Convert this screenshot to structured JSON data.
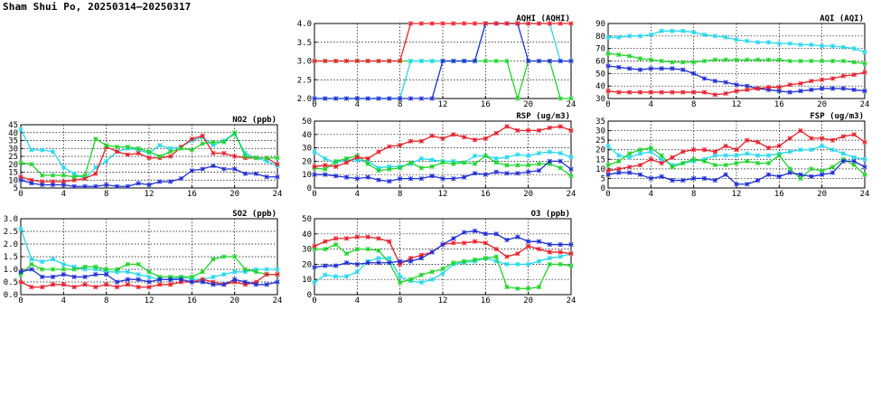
{
  "page_title": "Sham Shui Po, 20250314–20250317",
  "colors": {
    "red": "#e8202a",
    "blue": "#1f2fd4",
    "green": "#1ed42a",
    "cyan": "#23d8ee",
    "grid": "#000000"
  },
  "chart_data": [
    {
      "id": "no2",
      "type": "line",
      "title": "NO2 (ppb)",
      "xlim": [
        0,
        24
      ],
      "ylim": [
        5,
        45
      ],
      "xticks": [
        0,
        4,
        8,
        12,
        16,
        20,
        24
      ],
      "yticks": [
        5,
        10,
        15,
        20,
        25,
        30,
        35,
        40,
        45
      ],
      "ytick_labels": [
        "5",
        "10",
        "15",
        "20",
        "25",
        "30",
        "35",
        "40",
        "45"
      ],
      "series": [
        {
          "color": "cyan",
          "values": [
            42,
            29,
            29,
            28,
            18,
            14,
            11,
            18,
            22,
            28,
            30,
            29,
            27,
            32,
            30,
            31,
            35,
            37,
            32,
            35,
            39,
            27,
            24,
            22,
            19
          ]
        },
        {
          "color": "red",
          "values": [
            12,
            10,
            9,
            9,
            9,
            10,
            11,
            14,
            31,
            28,
            26,
            27,
            24,
            24,
            25,
            31,
            36,
            38,
            27,
            27,
            25,
            24,
            24,
            24,
            20
          ]
        },
        {
          "color": "green",
          "values": [
            21,
            20,
            13,
            13,
            13,
            12,
            13,
            36,
            32,
            31,
            31,
            30,
            28,
            25,
            28,
            30,
            29,
            33,
            34,
            34,
            40,
            25,
            24,
            24,
            24
          ]
        },
        {
          "color": "blue",
          "values": [
            10,
            8,
            7,
            7,
            7,
            6,
            6,
            6,
            7,
            6,
            6,
            8,
            7,
            9,
            9,
            11,
            16,
            17,
            19,
            17,
            17,
            14,
            14,
            12,
            12
          ]
        }
      ]
    },
    {
      "id": "so2",
      "type": "line",
      "title": "SO2 (ppb)",
      "xlim": [
        0,
        24
      ],
      "ylim": [
        0,
        3
      ],
      "xticks": [
        0,
        4,
        8,
        12,
        16,
        20,
        24
      ],
      "yticks": [
        0,
        0.5,
        1,
        1.5,
        2,
        2.5,
        3
      ],
      "ytick_labels": [
        "0.0",
        "0.5",
        "1.0",
        "1.5",
        "2.0",
        "2.5",
        "3.0"
      ],
      "series": [
        {
          "color": "cyan",
          "values": [
            2.6,
            1.4,
            1.3,
            1.4,
            1.2,
            1.1,
            1.0,
            1.0,
            0.9,
            0.9,
            0.9,
            0.8,
            0.7,
            0.6,
            0.6,
            0.7,
            0.6,
            0.6,
            0.7,
            0.8,
            0.9,
            0.9,
            1.0,
            1.0,
            1.0
          ]
        },
        {
          "color": "green",
          "values": [
            0.8,
            1.2,
            1.0,
            1.0,
            1.0,
            1.0,
            1.1,
            1.1,
            1.0,
            1.0,
            1.2,
            1.2,
            0.9,
            0.7,
            0.7,
            0.7,
            0.7,
            0.9,
            1.4,
            1.5,
            1.5,
            1.0,
            0.9,
            0.8,
            0.8
          ]
        },
        {
          "color": "red",
          "values": [
            0.5,
            0.3,
            0.3,
            0.4,
            0.4,
            0.3,
            0.4,
            0.3,
            0.4,
            0.3,
            0.4,
            0.3,
            0.3,
            0.4,
            0.4,
            0.5,
            0.5,
            0.6,
            0.5,
            0.4,
            0.5,
            0.4,
            0.5,
            0.8,
            0.8
          ]
        },
        {
          "color": "blue",
          "values": [
            0.9,
            1.0,
            0.7,
            0.7,
            0.8,
            0.7,
            0.7,
            0.8,
            0.8,
            0.5,
            0.6,
            0.6,
            0.5,
            0.6,
            0.6,
            0.6,
            0.5,
            0.5,
            0.4,
            0.4,
            0.6,
            0.5,
            0.4,
            0.4,
            0.5
          ]
        }
      ]
    },
    {
      "id": "aqhi",
      "type": "line",
      "title": "AQHI (AQHI)",
      "xlim": [
        0,
        24
      ],
      "ylim": [
        2,
        4
      ],
      "xticks": [
        0,
        4,
        8,
        12,
        16,
        20,
        24
      ],
      "yticks": [
        2,
        2.5,
        3,
        3.5,
        4
      ],
      "ytick_labels": [
        "2.0",
        "2.5",
        "3.0",
        "3.5",
        "4.0"
      ],
      "series": [
        {
          "color": "green",
          "values": [
            3,
            3,
            3,
            3,
            3,
            3,
            3,
            3,
            3,
            3,
            3,
            3,
            3,
            3,
            3,
            3,
            3,
            3,
            3,
            2,
            3,
            3,
            3,
            2,
            2
          ]
        },
        {
          "color": "cyan",
          "values": [
            2,
            2,
            2,
            2,
            2,
            2,
            2,
            2,
            2,
            3,
            3,
            3,
            3,
            3,
            3,
            3,
            4,
            4,
            4,
            4,
            4,
            4,
            4,
            3,
            3
          ]
        },
        {
          "color": "blue",
          "values": [
            2,
            2,
            2,
            2,
            2,
            2,
            2,
            2,
            2,
            2,
            2,
            2,
            3,
            3,
            3,
            3,
            4,
            4,
            4,
            4,
            3,
            3,
            3,
            3,
            3
          ]
        },
        {
          "color": "red",
          "values": [
            3,
            3,
            3,
            3,
            3,
            3,
            3,
            3,
            3,
            4,
            4,
            4,
            4,
            4,
            4,
            4,
            4,
            4,
            4,
            4,
            4,
            4,
            4,
            4,
            4
          ]
        }
      ]
    },
    {
      "id": "rsp",
      "type": "line",
      "title": "RSP (ug/m3)",
      "xlim": [
        0,
        24
      ],
      "ylim": [
        0,
        50
      ],
      "xticks": [
        0,
        4,
        8,
        12,
        16,
        20,
        24
      ],
      "yticks": [
        0,
        10,
        20,
        30,
        40,
        50
      ],
      "ytick_labels": [
        "0",
        "10",
        "20",
        "30",
        "40",
        "50"
      ],
      "series": [
        {
          "color": "cyan",
          "values": [
            27,
            22,
            19,
            21,
            21,
            20,
            15,
            16,
            16,
            18,
            22,
            21,
            20,
            20,
            19,
            24,
            24,
            22,
            23,
            25,
            24,
            26,
            27,
            26,
            23
          ]
        },
        {
          "color": "green",
          "values": [
            15,
            14,
            20,
            22,
            24,
            18,
            13,
            14,
            15,
            19,
            15,
            16,
            19,
            18,
            19,
            18,
            24,
            19,
            17,
            17,
            17,
            18,
            18,
            15,
            9
          ]
        },
        {
          "color": "red",
          "values": [
            16,
            17,
            16,
            19,
            23,
            22,
            27,
            31,
            32,
            35,
            35,
            39,
            37,
            40,
            38,
            36,
            37,
            41,
            46,
            43,
            43,
            43,
            45,
            46,
            43
          ]
        },
        {
          "color": "blue",
          "values": [
            10,
            10,
            9,
            8,
            7,
            8,
            6,
            5,
            7,
            7,
            7,
            9,
            7,
            7,
            8,
            11,
            10,
            12,
            11,
            11,
            12,
            13,
            20,
            20,
            14
          ]
        }
      ]
    },
    {
      "id": "o3",
      "type": "line",
      "title": "O3 (ppb)",
      "xlim": [
        0,
        24
      ],
      "ylim": [
        0,
        50
      ],
      "xticks": [
        0,
        4,
        8,
        12,
        16,
        20,
        24
      ],
      "yticks": [
        0,
        10,
        20,
        30,
        40,
        50
      ],
      "ytick_labels": [
        "0",
        "10",
        "20",
        "30",
        "40",
        "50"
      ],
      "series": [
        {
          "color": "cyan",
          "values": [
            8,
            13,
            12,
            12,
            15,
            22,
            24,
            24,
            12,
            9,
            8,
            10,
            14,
            20,
            21,
            22,
            24,
            22,
            20,
            20,
            20,
            22,
            24,
            25,
            27
          ]
        },
        {
          "color": "green",
          "values": [
            30,
            30,
            33,
            27,
            30,
            30,
            29,
            21,
            8,
            10,
            13,
            15,
            17,
            21,
            22,
            23,
            24,
            25,
            5,
            4,
            4,
            5,
            20,
            20,
            19
          ]
        },
        {
          "color": "red",
          "values": [
            32,
            35,
            37,
            37,
            38,
            38,
            37,
            35,
            20,
            24,
            26,
            28,
            33,
            34,
            34,
            35,
            34,
            30,
            25,
            27,
            32,
            30,
            28,
            28,
            27
          ]
        },
        {
          "color": "blue",
          "values": [
            18,
            19,
            19,
            21,
            20,
            21,
            21,
            21,
            22,
            22,
            24,
            28,
            33,
            37,
            41,
            42,
            40,
            40,
            36,
            38,
            35,
            35,
            33,
            33,
            33
          ]
        }
      ]
    },
    {
      "id": "aqi",
      "type": "line",
      "title": "AQI (AQI)",
      "xlim": [
        0,
        24
      ],
      "ylim": [
        30,
        90
      ],
      "xticks": [
        0,
        4,
        8,
        12,
        16,
        20,
        24
      ],
      "yticks": [
        30,
        40,
        50,
        60,
        70,
        80,
        90
      ],
      "ytick_labels": [
        "30",
        "40",
        "50",
        "60",
        "70",
        "80",
        "90"
      ],
      "series": [
        {
          "color": "cyan",
          "values": [
            79,
            79,
            80,
            80,
            81,
            84,
            84,
            84,
            83,
            81,
            80,
            79,
            77,
            76,
            75,
            75,
            74,
            74,
            73,
            73,
            72,
            72,
            71,
            70,
            67
          ]
        },
        {
          "color": "green",
          "values": [
            66,
            65,
            64,
            62,
            61,
            60,
            59,
            59,
            59,
            60,
            61,
            61,
            61,
            61,
            61,
            61,
            61,
            60,
            60,
            60,
            60,
            60,
            60,
            59,
            58
          ]
        },
        {
          "color": "blue",
          "values": [
            56,
            55,
            54,
            53,
            54,
            54,
            54,
            53,
            50,
            46,
            44,
            43,
            41,
            40,
            38,
            37,
            36,
            35,
            36,
            37,
            38,
            38,
            38,
            37,
            36
          ]
        },
        {
          "color": "red",
          "values": [
            36,
            35,
            35,
            35,
            35,
            35,
            35,
            35,
            35,
            35,
            33,
            34,
            36,
            37,
            38,
            39,
            39,
            41,
            42,
            44,
            45,
            46,
            48,
            49,
            51
          ]
        }
      ]
    },
    {
      "id": "fsp",
      "type": "line",
      "title": "FSP (ug/m3)",
      "xlim": [
        0,
        24
      ],
      "ylim": [
        0,
        35
      ],
      "xticks": [
        0,
        4,
        8,
        12,
        16,
        20,
        24
      ],
      "yticks": [
        0,
        5,
        10,
        15,
        20,
        25,
        30,
        35
      ],
      "ytick_labels": [
        "0",
        "5",
        "10",
        "15",
        "20",
        "25",
        "30",
        "35"
      ],
      "series": [
        {
          "color": "cyan",
          "values": [
            22,
            17,
            16,
            18,
            19,
            15,
            12,
            13,
            14,
            15,
            17,
            17,
            17,
            18,
            17,
            17,
            18,
            19,
            20,
            20,
            22,
            20,
            18,
            16,
            15
          ]
        },
        {
          "color": "green",
          "values": [
            12,
            14,
            18,
            20,
            21,
            17,
            11,
            13,
            15,
            14,
            12,
            12,
            13,
            14,
            13,
            13,
            17,
            10,
            5,
            10,
            9,
            11,
            15,
            12,
            7
          ]
        },
        {
          "color": "red",
          "values": [
            9,
            10,
            11,
            12,
            15,
            13,
            16,
            19,
            20,
            20,
            19,
            22,
            20,
            25,
            24,
            21,
            22,
            26,
            30,
            26,
            26,
            25,
            27,
            28,
            24
          ]
        },
        {
          "color": "blue",
          "values": [
            7,
            8,
            8,
            7,
            5,
            6,
            4,
            4,
            5,
            5,
            4,
            7,
            2,
            2,
            4,
            7,
            6,
            8,
            7,
            6,
            7,
            8,
            14,
            14,
            11
          ]
        }
      ]
    }
  ]
}
